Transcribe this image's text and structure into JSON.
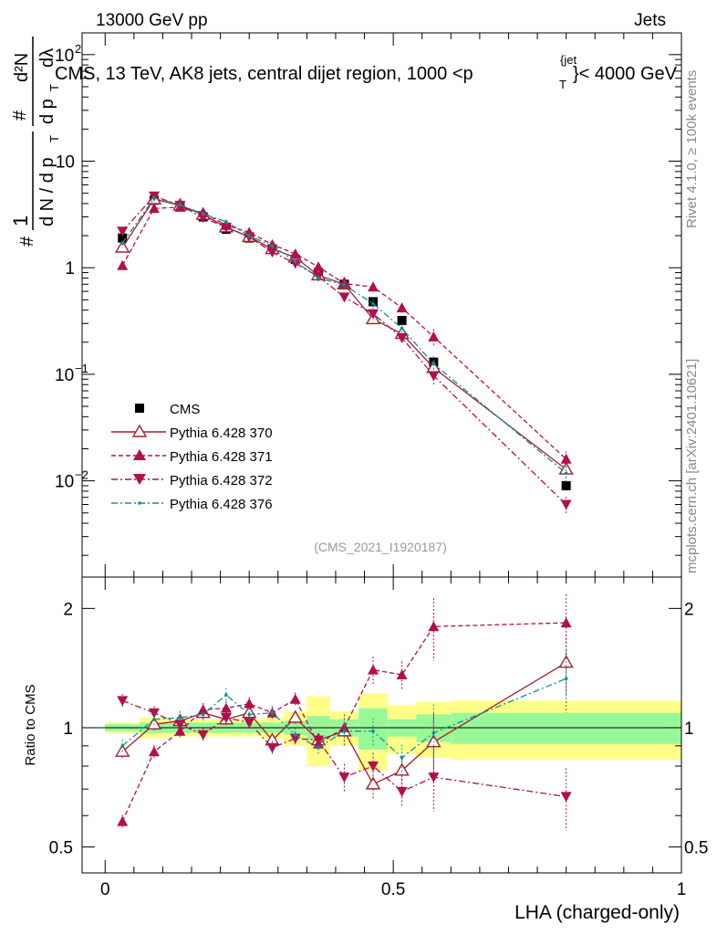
{
  "header": {
    "left": "13000 GeV pp",
    "right": "Jets"
  },
  "title": "CMS, 13 TeV, AK8 jets, central dijet region, 1000 <p",
  "title_sup": "{jet",
  "title_sub": "T",
  "title_end": "}< 4000 GeV",
  "side_text_1": "Rivet 4.1.0, ≥ 100k events",
  "side_text_2": "mcplots.cern.ch [arXiv:2401.10621]",
  "watermark": "(CMS_2021_I1920187)",
  "ylabel_upper": {
    "hash": "#",
    "one": "1",
    "dN": "d N / d p",
    "dN_sub": "T",
    "hash2": "#",
    "d2N_top": "d²N",
    "d2N_bot": "d p",
    "d2N_sub": "T",
    "dlambda": "dλ"
  },
  "ylabel_lower": "Ratio to CMS",
  "xlabel": "LHA (charged-only)",
  "colors": {
    "cms": "#000000",
    "p370": "#a02030",
    "p371": "#b0104c",
    "p372": "#b0104c",
    "p376": "#109090",
    "band_yellow": "#ffff88",
    "band_green": "#98f898"
  },
  "chart_data": [
    {
      "type": "scatter",
      "yscale": "log",
      "xlim": [
        -0.04,
        1.0
      ],
      "ylim": [
        0.00125,
        160
      ],
      "y_ticks_major": [
        {
          "value": 0.01,
          "label_base": "10",
          "label_exp": "−2"
        },
        {
          "value": 0.1,
          "label_base": "10",
          "label_exp": "−1"
        },
        {
          "value": 1,
          "label_base": "1",
          "label_exp": ""
        },
        {
          "value": 10,
          "label_base": "10",
          "label_exp": ""
        },
        {
          "value": 100,
          "label_base": "10",
          "label_exp": "2"
        }
      ],
      "x": [
        0.03,
        0.085,
        0.13,
        0.17,
        0.21,
        0.25,
        0.29,
        0.33,
        0.37,
        0.415,
        0.465,
        0.515,
        0.57,
        0.8
      ],
      "x_low": [
        0.0,
        0.06,
        0.11,
        0.15,
        0.19,
        0.23,
        0.27,
        0.31,
        0.35,
        0.39,
        0.44,
        0.49,
        0.54,
        0.6
      ],
      "x_high": [
        0.06,
        0.11,
        0.15,
        0.19,
        0.23,
        0.27,
        0.31,
        0.35,
        0.39,
        0.44,
        0.49,
        0.54,
        0.6,
        1.0
      ],
      "series": [
        {
          "name": "CMS",
          "style": "square",
          "values": [
            1.9,
            4.3,
            3.8,
            3.0,
            2.3,
            1.9,
            1.5,
            1.2,
            0.9,
            0.7,
            0.48,
            0.32,
            0.13,
            0.009
          ]
        },
        {
          "name": "Pythia 6.428 370",
          "style": "open-triangle-up",
          "line": "solid",
          "values": [
            1.55,
            4.4,
            3.85,
            3.15,
            2.4,
            1.95,
            1.5,
            1.25,
            0.85,
            0.7,
            0.33,
            0.24,
            0.115,
            0.0128
          ]
        },
        {
          "name": "Pythia 6.428 371",
          "style": "triangle-up",
          "line": "dashed",
          "values": [
            1.05,
            3.6,
            3.7,
            3.3,
            2.5,
            2.15,
            1.65,
            1.35,
            1.02,
            0.71,
            0.66,
            0.42,
            0.225,
            0.016
          ]
        },
        {
          "name": "Pythia 6.428 372",
          "style": "triangle-down",
          "line": "dashdot",
          "values": [
            2.2,
            4.7,
            3.85,
            2.95,
            2.4,
            1.95,
            1.4,
            1.1,
            0.83,
            0.53,
            0.37,
            0.22,
            0.097,
            0.006
          ]
        },
        {
          "name": "Pythia 6.428 376",
          "style": "dot",
          "line": "dashdot",
          "values": [
            1.7,
            4.5,
            3.9,
            3.2,
            2.7,
            2.0,
            1.6,
            1.15,
            0.8,
            0.69,
            0.46,
            0.27,
            0.125,
            0.0118
          ]
        }
      ]
    },
    {
      "type": "scatter",
      "ylabel": "Ratio to CMS",
      "xlabel": "LHA (charged-only)",
      "yscale": "log",
      "ylim": [
        0.43,
        2.4
      ],
      "xlim": [
        -0.04,
        1.0
      ],
      "y_ticks": [
        {
          "value": 0.5,
          "label": "0.5"
        },
        {
          "value": 1,
          "label": "1"
        },
        {
          "value": 2,
          "label": "2"
        }
      ],
      "x_ticks": [
        {
          "value": 0,
          "label": "0"
        },
        {
          "value": 0.5,
          "label": "0.5"
        },
        {
          "value": 1,
          "label": "1"
        }
      ],
      "bands": {
        "green_half_width": [
          0.02,
          0.03,
          0.03,
          0.03,
          0.03,
          0.03,
          0.03,
          0.04,
          0.07,
          0.05,
          0.12,
          0.05,
          0.08,
          0.09
        ],
        "yellow_half_width": [
          0.03,
          0.06,
          0.05,
          0.05,
          0.05,
          0.05,
          0.06,
          0.1,
          0.2,
          0.1,
          0.22,
          0.14,
          0.16,
          0.17
        ]
      },
      "series": [
        {
          "name": "Pythia 6.428 370",
          "values": [
            0.87,
            1.02,
            1.04,
            1.09,
            1.05,
            1.09,
            0.93,
            1.06,
            0.93,
            0.98,
            0.72,
            0.78,
            0.92,
            1.46
          ]
        },
        {
          "name": "Pythia 6.428 371",
          "values": [
            0.58,
            0.87,
            0.98,
            1.11,
            1.12,
            1.15,
            1.09,
            1.18,
            0.91,
            1.0,
            1.4,
            1.36,
            1.8,
            1.84
          ]
        },
        {
          "name": "Pythia 6.428 372",
          "values": [
            1.17,
            1.09,
            1.02,
            0.96,
            1.06,
            1.03,
            0.89,
            0.94,
            0.93,
            0.75,
            0.8,
            0.69,
            0.75,
            0.67
          ]
        },
        {
          "name": "Pythia 6.428 376",
          "values": [
            0.9,
            1.05,
            1.06,
            1.08,
            1.21,
            1.08,
            1.09,
            0.96,
            0.89,
            0.98,
            0.98,
            0.84,
            0.97,
            1.33
          ]
        }
      ]
    }
  ]
}
